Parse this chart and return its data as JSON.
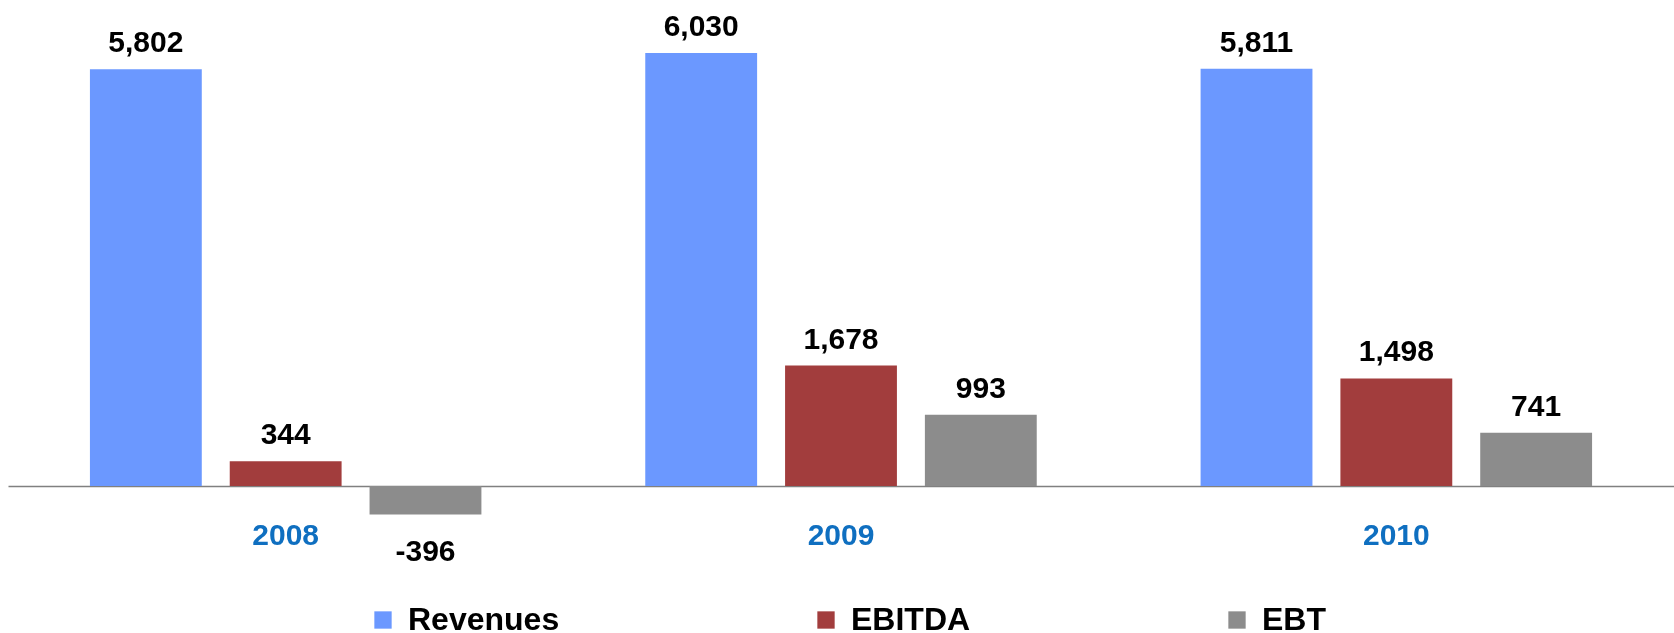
{
  "chart_data": {
    "type": "bar",
    "categories": [
      "2008",
      "2009",
      "2010"
    ],
    "series": [
      {
        "name": "Revenues",
        "color": "#6b98ff",
        "values": [
          5802,
          6030,
          5811
        ],
        "value_labels": [
          "5,802",
          "6,030",
          "5,811"
        ]
      },
      {
        "name": "EBITDA",
        "color": "#a23d3d",
        "values": [
          344,
          1678,
          1498
        ],
        "value_labels": [
          "344",
          "1,678",
          "1,498"
        ]
      },
      {
        "name": "EBT",
        "color": "#8c8c8c",
        "values": [
          -396,
          993,
          741
        ],
        "value_labels": [
          "-396",
          "993",
          "741"
        ]
      }
    ],
    "legend": "bottom"
  }
}
